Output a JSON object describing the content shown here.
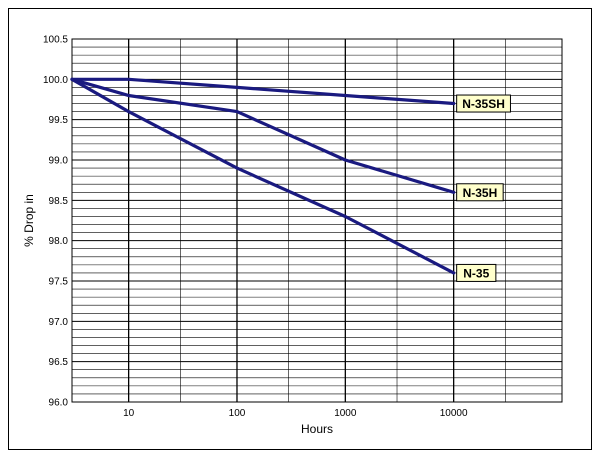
{
  "chart_data": {
    "type": "line",
    "title": "",
    "xlabel": "Hours",
    "ylabel": "% Drop in",
    "x_scale": "log",
    "xlim": [
      3,
      100000
    ],
    "ylim": [
      96.0,
      100.5
    ],
    "x_ticks": [
      10,
      100,
      1000,
      10000
    ],
    "x_tick_labels": [
      "10",
      "100",
      "1000",
      "10000"
    ],
    "y_ticks": [
      96.0,
      96.5,
      97.0,
      97.5,
      98.0,
      98.5,
      99.0,
      99.5,
      100.0,
      100.5
    ],
    "y_tick_labels": [
      "96.0",
      "96.5",
      "97.0",
      "97.5",
      "98.0",
      "98.5",
      "99.0",
      "99.5",
      "100.0",
      "100.5"
    ],
    "y_minor_step": 0.1,
    "grid": true,
    "series": [
      {
        "name": "N-35SH",
        "x": [
          3,
          10,
          100,
          1000,
          10000
        ],
        "y": [
          100.0,
          100.0,
          99.9,
          99.8,
          99.7
        ]
      },
      {
        "name": "N-35H",
        "x": [
          3,
          10,
          100,
          1000,
          10000
        ],
        "y": [
          100.0,
          99.8,
          99.6,
          99.0,
          98.6
        ]
      },
      {
        "name": "N-35",
        "x": [
          3,
          10,
          100,
          1000,
          10000
        ],
        "y": [
          100.0,
          99.6,
          98.9,
          98.3,
          97.6
        ]
      }
    ],
    "colors": {
      "line": "#1a1a80",
      "label_bg": "#ffffcc",
      "grid": "#000000"
    }
  }
}
